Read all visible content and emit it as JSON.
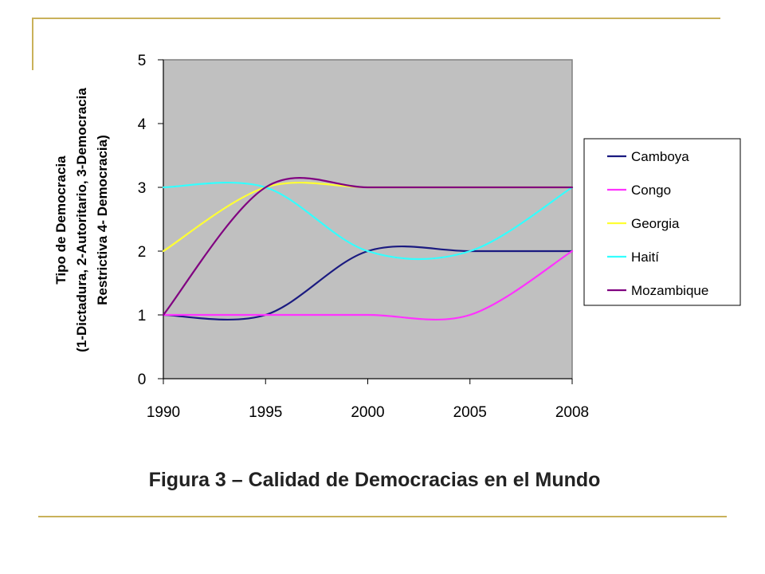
{
  "figure": {
    "caption": "Figura 3 – Calidad de Democracias en el Mundo"
  },
  "chart_data": {
    "type": "line",
    "x": [
      "1990",
      "1995",
      "2000",
      "2005",
      "2008"
    ],
    "ylabel": [
      "Tipo de Democracia",
      "(1-Dictadura, 2-Autoritario, 3-Democracia",
      "Restrictiva 4- Democracia)"
    ],
    "ylim": [
      0,
      5
    ],
    "yticks": [
      "0",
      "1",
      "2",
      "3",
      "4",
      "5"
    ],
    "grid": false,
    "plot_background": "#c0c0c0",
    "legend_position": "right",
    "series": [
      {
        "name": "Camboya",
        "color": "#1a1a80",
        "values": [
          1,
          1,
          2,
          2,
          2
        ]
      },
      {
        "name": "Congo",
        "color": "#ff33ff",
        "values": [
          1,
          1,
          1,
          1,
          2
        ]
      },
      {
        "name": "Georgia",
        "color": "#ffff33",
        "values": [
          2,
          3,
          3,
          3,
          3
        ]
      },
      {
        "name": "Haití",
        "color": "#33ffff",
        "values": [
          3,
          3,
          2,
          2,
          3
        ]
      },
      {
        "name": "Mozambique",
        "color": "#800080",
        "values": [
          1,
          3,
          3,
          3,
          3
        ]
      }
    ]
  }
}
